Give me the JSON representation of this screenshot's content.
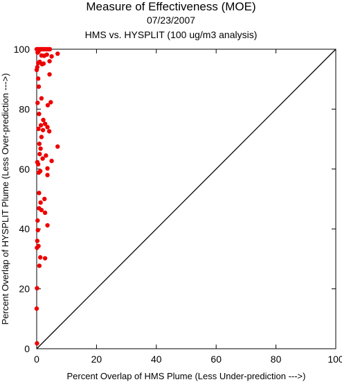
{
  "chart_data": {
    "type": "scatter",
    "title": "Measure of Effectiveness (MOE)",
    "date": "07/23/2007",
    "subtitle": "HMS vs. HYSPLIT  (100 ug/m3 analysis)",
    "xlabel": "Percent Overlap of HMS Plume (Less Under-prediction --->)",
    "ylabel": "Percent Overlap of HYSPLIT Plume (Less Over-prediction --->)",
    "xlim": [
      0,
      100
    ],
    "ylim": [
      0,
      100
    ],
    "xticks": [
      0,
      20,
      40,
      60,
      80,
      100
    ],
    "yticks": [
      0,
      20,
      40,
      60,
      80,
      100
    ],
    "reference_line": "y = x",
    "marker_color": "#ee0000",
    "points": [
      {
        "x": 0.0,
        "y": 100
      },
      {
        "x": 0.4,
        "y": 100
      },
      {
        "x": 0.8,
        "y": 100
      },
      {
        "x": 1.2,
        "y": 100
      },
      {
        "x": 1.6,
        "y": 100
      },
      {
        "x": 2.0,
        "y": 100
      },
      {
        "x": 2.5,
        "y": 100
      },
      {
        "x": 3.0,
        "y": 100
      },
      {
        "x": 3.5,
        "y": 100
      },
      {
        "x": 4.0,
        "y": 100
      },
      {
        "x": 4.4,
        "y": 100
      },
      {
        "x": 0.3,
        "y": 98.9
      },
      {
        "x": 0.6,
        "y": 99.2
      },
      {
        "x": 7.0,
        "y": 98.5
      },
      {
        "x": 3.4,
        "y": 98.2
      },
      {
        "x": 1.6,
        "y": 97.9
      },
      {
        "x": 2.5,
        "y": 97.8
      },
      {
        "x": 5.0,
        "y": 97.6
      },
      {
        "x": 4.3,
        "y": 96.0
      },
      {
        "x": 1.0,
        "y": 95.8
      },
      {
        "x": 0.5,
        "y": 95.4
      },
      {
        "x": 2.3,
        "y": 95.2
      },
      {
        "x": 1.8,
        "y": 95.0
      },
      {
        "x": 0.2,
        "y": 94.0
      },
      {
        "x": 0.0,
        "y": 93.1
      },
      {
        "x": 4.3,
        "y": 91.6
      },
      {
        "x": 0.5,
        "y": 90.2
      },
      {
        "x": 0.7,
        "y": 87.5
      },
      {
        "x": 1.6,
        "y": 83.6
      },
      {
        "x": 4.7,
        "y": 82.3
      },
      {
        "x": 0.3,
        "y": 82.1
      },
      {
        "x": 3.7,
        "y": 81.3
      },
      {
        "x": 0.8,
        "y": 78.4
      },
      {
        "x": 2.2,
        "y": 76.4
      },
      {
        "x": 2.8,
        "y": 75.1
      },
      {
        "x": 1.4,
        "y": 74.6
      },
      {
        "x": 3.6,
        "y": 74.0
      },
      {
        "x": 0.6,
        "y": 73.4
      },
      {
        "x": 2.1,
        "y": 73.0
      },
      {
        "x": 4.2,
        "y": 72.6
      },
      {
        "x": 1.6,
        "y": 70.7
      },
      {
        "x": 0.9,
        "y": 68.4
      },
      {
        "x": 7.0,
        "y": 67.5
      },
      {
        "x": 1.3,
        "y": 66.8
      },
      {
        "x": 1.0,
        "y": 65.0
      },
      {
        "x": 3.1,
        "y": 64.5
      },
      {
        "x": 2.0,
        "y": 63.5
      },
      {
        "x": 5.0,
        "y": 62.7
      },
      {
        "x": 0.2,
        "y": 62.3
      },
      {
        "x": 0.5,
        "y": 61.6
      },
      {
        "x": 3.6,
        "y": 60.2
      },
      {
        "x": 1.2,
        "y": 59.3
      },
      {
        "x": 0.7,
        "y": 58.8
      },
      {
        "x": 3.6,
        "y": 58.0
      },
      {
        "x": 0.8,
        "y": 52.0
      },
      {
        "x": 2.6,
        "y": 50.0
      },
      {
        "x": 1.3,
        "y": 48.8
      },
      {
        "x": 0.8,
        "y": 46.9
      },
      {
        "x": 1.6,
        "y": 46.3
      },
      {
        "x": 2.8,
        "y": 45.4
      },
      {
        "x": 0.3,
        "y": 42.8
      },
      {
        "x": 3.6,
        "y": 41.2
      },
      {
        "x": 0.4,
        "y": 39.6
      },
      {
        "x": 0.2,
        "y": 36.0
      },
      {
        "x": 0.6,
        "y": 34.3
      },
      {
        "x": 0.1,
        "y": 33.7
      },
      {
        "x": 1.2,
        "y": 30.5
      },
      {
        "x": 2.8,
        "y": 30.2
      },
      {
        "x": 0.9,
        "y": 27.7
      },
      {
        "x": 0.1,
        "y": 20.2
      },
      {
        "x": 0.0,
        "y": 13.4
      },
      {
        "x": 0.1,
        "y": 1.8
      }
    ]
  }
}
